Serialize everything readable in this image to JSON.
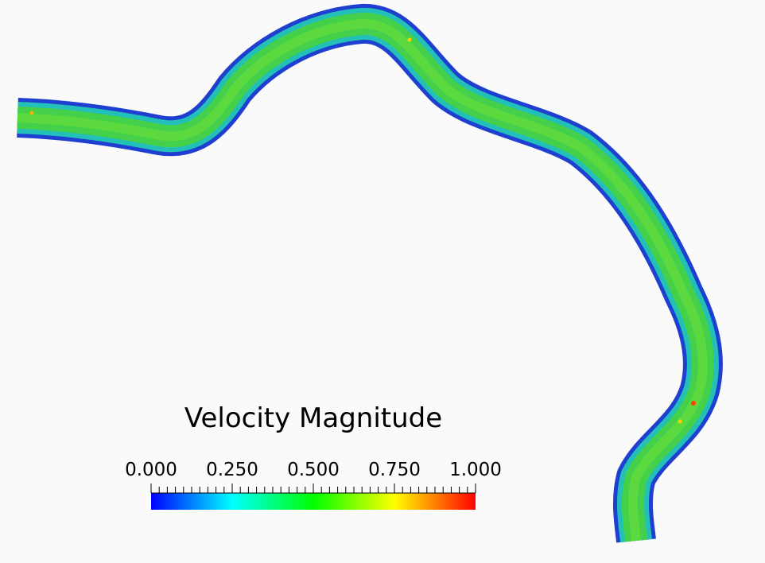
{
  "colorbar": {
    "title": "Velocity Magnitude",
    "tick_labels": [
      "0.000",
      "0.250",
      "0.500",
      "0.750",
      "1.000"
    ],
    "range": [
      0.0,
      1.0
    ],
    "colormap": [
      "#0000ff",
      "#00ffff",
      "#00ff00",
      "#ffff00",
      "#ff0000"
    ]
  }
}
